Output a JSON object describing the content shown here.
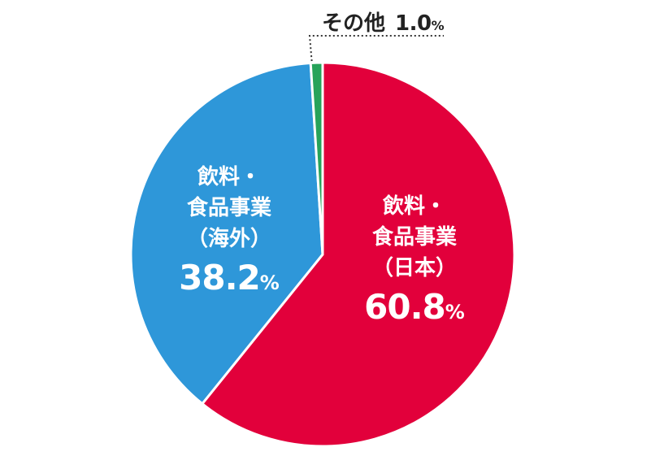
{
  "chart_data": {
    "type": "pie",
    "start": "top",
    "direction": "clockwise",
    "slices": [
      {
        "label_lines": [
          "飲料・",
          "食品事業",
          "（日本）"
        ],
        "value": 60.8,
        "value_text": "60.8",
        "unit": "%",
        "color": "#e2003b"
      },
      {
        "label_lines": [
          "飲料・",
          "食品事業",
          "（海外）"
        ],
        "value": 38.2,
        "value_text": "38.2",
        "unit": "%",
        "color": "#2e97d9"
      },
      {
        "label_lines": [
          "その他"
        ],
        "value": 1.0,
        "value_text": "1.0",
        "unit": "%",
        "color": "#27a35a"
      }
    ]
  }
}
